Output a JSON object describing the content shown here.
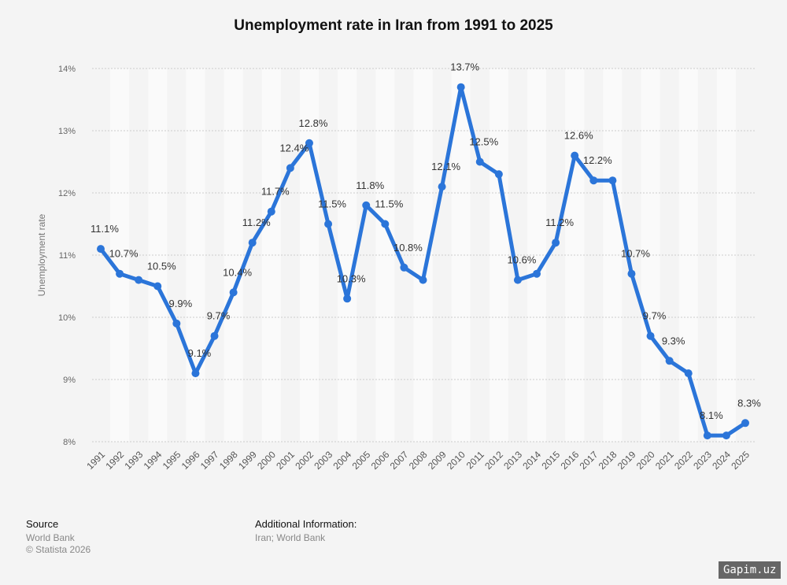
{
  "chart_data": {
    "type": "line",
    "title": "Unemployment rate in Iran from 1991 to 2025",
    "xlabel": "",
    "ylabel": "Unemployment rate",
    "ylim": [
      8,
      14
    ],
    "yticks": [
      "8%",
      "9%",
      "10%",
      "11%",
      "12%",
      "13%",
      "14%"
    ],
    "grid": true,
    "x": [
      "1991",
      "1992",
      "1993",
      "1994",
      "1995",
      "1996",
      "1997",
      "1998",
      "1999",
      "2000",
      "2001",
      "2002",
      "2003",
      "2004",
      "2005",
      "2006",
      "2007",
      "2008",
      "2009",
      "2010",
      "2011",
      "2012",
      "2013",
      "2014",
      "2015",
      "2016",
      "2017",
      "2018",
      "2019",
      "2020",
      "2021",
      "2022",
      "2023",
      "2024",
      "2025"
    ],
    "values": [
      11.1,
      10.7,
      10.6,
      10.5,
      9.9,
      9.1,
      9.7,
      10.4,
      11.2,
      11.7,
      12.4,
      12.8,
      11.5,
      10.3,
      11.8,
      11.5,
      10.8,
      10.6,
      12.1,
      13.7,
      12.5,
      12.3,
      10.6,
      10.7,
      11.2,
      12.6,
      12.2,
      12.2,
      10.7,
      9.7,
      9.3,
      9.1,
      8.1,
      8.1,
      8.3
    ],
    "data_labels": [
      "11.1%",
      "10.7%",
      "",
      "10.5%",
      "9.9%",
      "9.1%",
      "9.7%",
      "10.4%",
      "11.2%",
      "11.7%",
      "12.4%",
      "12.8%",
      "11.5%",
      "10.3%",
      "11.8%",
      "11.5%",
      "10.8%",
      "",
      "12.1%",
      "13.7%",
      "12.5%",
      "",
      "10.6%",
      "",
      "11.2%",
      "12.6%",
      "12.2%",
      "",
      "10.7%",
      "9.7%",
      "9.3%",
      "",
      "8.1%",
      "",
      "8.3%"
    ],
    "line_color": "#2b75d9"
  },
  "footer": {
    "source_heading": "Source",
    "source": "World Bank",
    "copyright": "© Statista 2026",
    "info_heading": "Additional Information:",
    "info": "Iran; World Bank"
  },
  "watermark": "Gapim.uz"
}
